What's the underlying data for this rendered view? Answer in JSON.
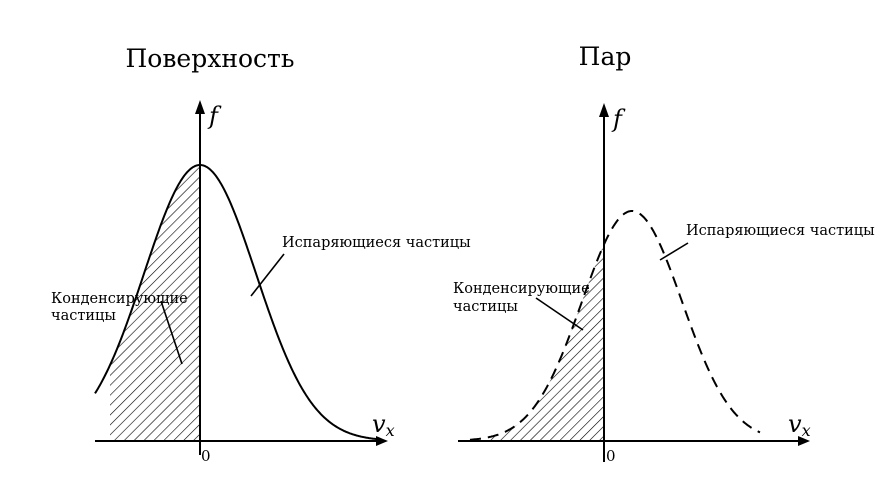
{
  "panels": [
    {
      "title": "Поверхность",
      "y_label": "f",
      "x_label": "v",
      "x_subscript": "x",
      "origin_label": "0",
      "condensing_label_line1": "Конденсирующие",
      "condensing_label_line2": "частицы",
      "evaporating_label": "Испаряющиеся частицы",
      "curve_style": "solid"
    },
    {
      "title": "Пар",
      "y_label": "f",
      "x_label": "v",
      "x_subscript": "x",
      "origin_label": "0",
      "condensing_label_line1": "Конденсирующие",
      "condensing_label_line2": "частицы",
      "evaporating_label": "Испаряющиеся частицы",
      "curve_style": "dashed"
    }
  ]
}
